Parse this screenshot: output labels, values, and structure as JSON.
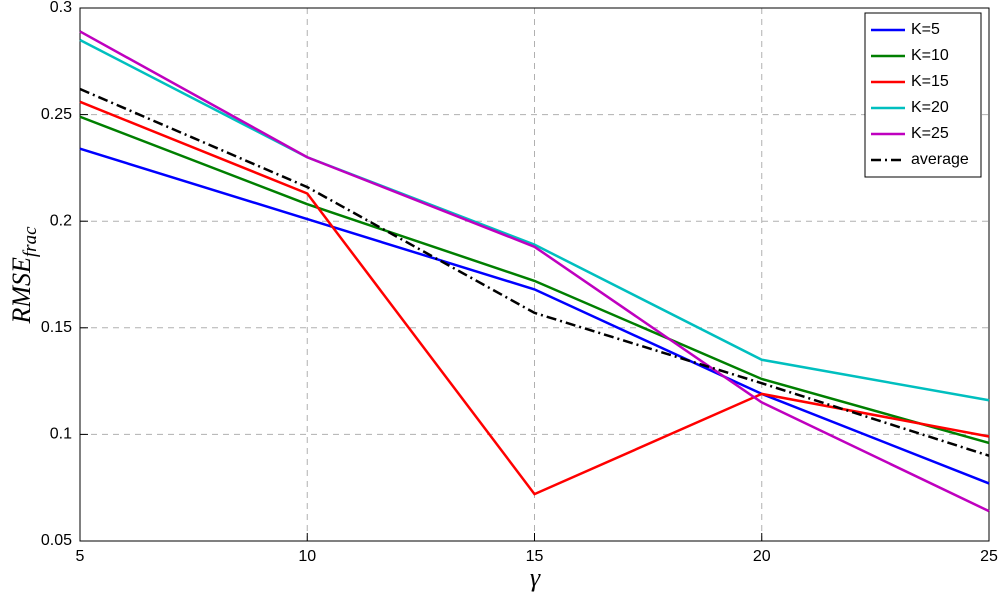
{
  "chart_data": {
    "type": "line",
    "xlabel": "γ",
    "ylabel": {
      "main": "RMSE",
      "sub": "frac"
    },
    "x": [
      5,
      10,
      15,
      20,
      25
    ],
    "series": [
      {
        "name": "K=5",
        "color": "#0000ff",
        "values": [
          0.234,
          0.201,
          0.168,
          0.119,
          0.077
        ]
      },
      {
        "name": "K=10",
        "color": "#007f00",
        "values": [
          0.249,
          0.208,
          0.172,
          0.126,
          0.096
        ]
      },
      {
        "name": "K=15",
        "color": "#ff0000",
        "values": [
          0.256,
          0.213,
          0.072,
          0.119,
          0.099
        ]
      },
      {
        "name": "K=20",
        "color": "#00bfbf",
        "values": [
          0.285,
          0.23,
          0.189,
          0.135,
          0.116
        ]
      },
      {
        "name": "K=25",
        "color": "#bf00bf",
        "values": [
          0.289,
          0.23,
          0.188,
          0.115,
          0.064
        ]
      },
      {
        "name": "average",
        "color": "#000000",
        "dash": "dashdot",
        "values": [
          0.262,
          0.216,
          0.157,
          0.124,
          0.09
        ]
      }
    ],
    "xlim": [
      5,
      25
    ],
    "xticks": [
      5,
      10,
      15,
      20,
      25
    ],
    "ylim": [
      0.05,
      0.3
    ],
    "yticks": [
      0.05,
      0.1,
      0.15,
      0.2,
      0.25,
      0.3
    ],
    "grid": true,
    "legend": "upper right"
  }
}
